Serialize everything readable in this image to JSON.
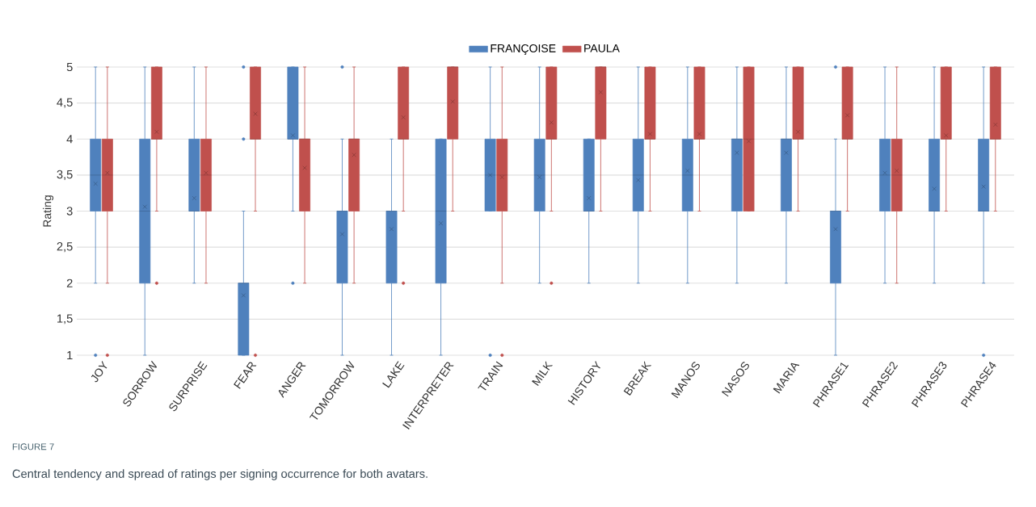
{
  "chart_data": {
    "type": "box",
    "ylabel": "Rating",
    "annotations": [
      "FIGURE 7",
      "Central tendency and spread of ratings per signing occurrence for both avatars."
    ],
    "categories": [
      "JOY",
      "SORROW",
      "SURPRISE",
      "FEAR",
      "ANGER",
      "TOMORROW",
      "LAKE",
      "INTERPRETER",
      "TRAIN",
      "MILK",
      "HISTORY",
      "BREAK",
      "MANOS",
      "NASOS",
      "MARIA",
      "PHRASE1",
      "PHRASE2",
      "PHRASE3",
      "PHRASE4"
    ],
    "ylim": [
      1,
      5
    ],
    "yticks": [
      1,
      {
        "value": 1.5,
        "label": "1,5"
      },
      2,
      {
        "value": 2.5,
        "label": "2,5"
      },
      3,
      {
        "value": 3.5,
        "label": "3,5"
      },
      4,
      {
        "value": 4.5,
        "label": "4,5"
      },
      5
    ],
    "grid": "y",
    "legend": "top",
    "series": [
      {
        "name": "FRANÇOISE",
        "color": "#4f81bd",
        "boxes": [
          {
            "low": 2,
            "q1": 3,
            "median": 3.5,
            "q3": 4,
            "high": 5,
            "mean": 3.38,
            "outliers": [
              1
            ]
          },
          {
            "low": 1,
            "q1": 2,
            "median": 3,
            "q3": 4,
            "high": 5,
            "mean": 3.06
          },
          {
            "low": 2,
            "q1": 3,
            "median": 3,
            "q3": 4,
            "high": 5,
            "mean": 3.18
          },
          {
            "low": 1,
            "q1": 1,
            "median": 2,
            "q3": 2,
            "high": 3,
            "mean": 1.83,
            "outliers": [
              4,
              5
            ]
          },
          {
            "low": 3,
            "q1": 4,
            "median": 4,
            "q3": 5,
            "high": 5,
            "mean": 4.05,
            "outliers": [
              2
            ]
          },
          {
            "low": 1,
            "q1": 2,
            "median": 3,
            "q3": 3,
            "high": 4,
            "mean": 2.68,
            "outliers": [
              5
            ]
          },
          {
            "low": 1,
            "q1": 2,
            "median": 3,
            "q3": 3,
            "high": 4,
            "mean": 2.75
          },
          {
            "low": 1,
            "q1": 2,
            "median": 3,
            "q3": 4,
            "high": 4,
            "mean": 2.83
          },
          {
            "low": 3,
            "q1": 3,
            "median": 3.5,
            "q3": 4,
            "high": 5,
            "mean": 3.5,
            "outliers": [
              1
            ]
          },
          {
            "low": 2,
            "q1": 3,
            "median": 3.5,
            "q3": 4,
            "high": 5,
            "mean": 3.47
          },
          {
            "low": 2,
            "q1": 3,
            "median": 3,
            "q3": 4,
            "high": 4,
            "mean": 3.18
          },
          {
            "low": 2,
            "q1": 3,
            "median": 3.5,
            "q3": 4,
            "high": 5,
            "mean": 3.43
          },
          {
            "low": 2,
            "q1": 3,
            "median": 3.5,
            "q3": 4,
            "high": 5,
            "mean": 3.56
          },
          {
            "low": 2,
            "q1": 3,
            "median": 4,
            "q3": 4,
            "high": 5,
            "mean": 3.81
          },
          {
            "low": 2,
            "q1": 3,
            "median": 4,
            "q3": 4,
            "high": 5,
            "mean": 3.81
          },
          {
            "low": 1,
            "q1": 2,
            "median": 3,
            "q3": 3,
            "high": 4,
            "mean": 2.75,
            "outliers": [
              5
            ]
          },
          {
            "low": 2,
            "q1": 3,
            "median": 3.5,
            "q3": 4,
            "high": 5,
            "mean": 3.53
          },
          {
            "low": 2,
            "q1": 3,
            "median": 3,
            "q3": 4,
            "high": 5,
            "mean": 3.31
          },
          {
            "low": 2,
            "q1": 3,
            "median": 3,
            "q3": 4,
            "high": 5,
            "mean": 3.34,
            "outliers": [
              1
            ]
          }
        ]
      },
      {
        "name": "PAULA",
        "color": "#c0504d",
        "boxes": [
          {
            "low": 2,
            "q1": 3,
            "median": 3.5,
            "q3": 4,
            "high": 5,
            "mean": 3.53,
            "outliers": [
              1
            ]
          },
          {
            "low": 3,
            "q1": 4,
            "median": 4,
            "q3": 5,
            "high": 5,
            "mean": 4.1,
            "outliers": [
              2
            ]
          },
          {
            "low": 2,
            "q1": 3,
            "median": 3.5,
            "q3": 4,
            "high": 5,
            "mean": 3.53
          },
          {
            "low": 3,
            "q1": 4,
            "median": 4,
            "q3": 5,
            "high": 5,
            "mean": 4.35,
            "outliers": [
              1
            ]
          },
          {
            "low": 2,
            "q1": 3,
            "median": 4,
            "q3": 4,
            "high": 5,
            "mean": 3.6
          },
          {
            "low": 2,
            "q1": 3,
            "median": 4,
            "q3": 4,
            "high": 5,
            "mean": 3.78
          },
          {
            "low": 3,
            "q1": 4,
            "median": 4,
            "q3": 5,
            "high": 5,
            "mean": 4.3,
            "outliers": [
              2
            ]
          },
          {
            "low": 3,
            "q1": 4,
            "median": 5,
            "q3": 5,
            "high": 5,
            "mean": 4.52
          },
          {
            "low": 2,
            "q1": 3,
            "median": 3.5,
            "q3": 4,
            "high": 5,
            "mean": 3.47,
            "outliers": [
              1
            ]
          },
          {
            "low": 3,
            "q1": 4,
            "median": 4,
            "q3": 5,
            "high": 5,
            "mean": 4.23,
            "outliers": [
              2
            ]
          },
          {
            "low": 3,
            "q1": 4,
            "median": 5,
            "q3": 5,
            "high": 5,
            "mean": 4.65
          },
          {
            "low": 3,
            "q1": 4,
            "median": 4,
            "q3": 5,
            "high": 5,
            "mean": 4.07
          },
          {
            "low": 3,
            "q1": 4,
            "median": 4,
            "q3": 5,
            "high": 5,
            "mean": 4.07
          },
          {
            "low": 3,
            "q1": 3,
            "median": 4,
            "q3": 5,
            "high": 5,
            "mean": 3.97
          },
          {
            "low": 3,
            "q1": 4,
            "median": 4,
            "q3": 5,
            "high": 5,
            "mean": 4.1
          },
          {
            "low": 3,
            "q1": 4,
            "median": 4,
            "q3": 5,
            "high": 5,
            "mean": 4.33
          },
          {
            "low": 2,
            "q1": 3,
            "median": 3.5,
            "q3": 4,
            "high": 5,
            "mean": 3.56
          },
          {
            "low": 3,
            "q1": 4,
            "median": 4,
            "q3": 5,
            "high": 5,
            "mean": 4.05
          },
          {
            "low": 3,
            "q1": 4,
            "median": 4,
            "q3": 5,
            "high": 5,
            "mean": 4.2
          }
        ]
      }
    ]
  }
}
